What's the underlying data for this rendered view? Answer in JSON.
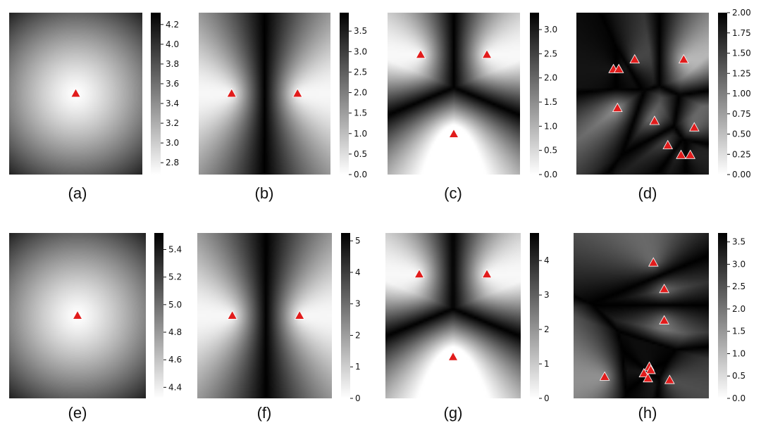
{
  "figure": {
    "panel_labels": [
      "(a)",
      "(b)",
      "(c)",
      "(d)",
      "(e)",
      "(f)",
      "(g)",
      "(h)"
    ]
  },
  "chart_data": [
    {
      "type": "heatmap",
      "label": "(a)",
      "field": "radial",
      "gamma": 1.3,
      "x_range": [
        0,
        1
      ],
      "y_range": [
        0,
        1
      ],
      "sources": [
        [
          0.5,
          0.5
        ]
      ],
      "colorbar": {
        "range": [
          2.68,
          4.32
        ],
        "ticks": [
          2.8,
          3.0,
          3.2,
          3.4,
          3.6,
          3.8,
          4.0,
          4.2
        ],
        "tick_labels": [
          "2.8",
          "3.0",
          "3.2",
          "3.4",
          "3.6",
          "3.8",
          "4.0",
          "4.2"
        ]
      }
    },
    {
      "type": "heatmap",
      "label": "(b)",
      "field": "gap",
      "gamma": 1.0,
      "x_range": [
        0,
        1
      ],
      "y_range": [
        0,
        1
      ],
      "sources": [
        [
          0.25,
          0.5
        ],
        [
          0.75,
          0.5
        ]
      ],
      "colorbar": {
        "range": [
          0,
          3.95
        ],
        "ticks": [
          0,
          0.5,
          1,
          1.5,
          2,
          2.5,
          3,
          3.5
        ],
        "tick_labels": [
          "0.0",
          "0.5",
          "1.0",
          "1.5",
          "2.0",
          "2.5",
          "3.0",
          "3.5"
        ]
      }
    },
    {
      "type": "heatmap",
      "label": "(c)",
      "field": "gap",
      "gamma": 1.0,
      "x_range": [
        0,
        1
      ],
      "y_range": [
        0,
        1
      ],
      "sources": [
        [
          0.25,
          0.26
        ],
        [
          0.75,
          0.26
        ],
        [
          0.5,
          0.75
        ]
      ],
      "colorbar": {
        "range": [
          0,
          3.35
        ],
        "ticks": [
          0,
          0.5,
          1,
          1.5,
          2,
          2.5,
          3
        ],
        "tick_labels": [
          "0.0",
          "0.5",
          "1.0",
          "1.5",
          "2.0",
          "2.5",
          "3.0"
        ]
      }
    },
    {
      "type": "heatmap",
      "label": "(d)",
      "field": "gap",
      "gamma": 1.0,
      "x_range": [
        0,
        1
      ],
      "y_range": [
        0,
        1
      ],
      "sources": [
        [
          0.28,
          0.35
        ],
        [
          0.32,
          0.35
        ],
        [
          0.44,
          0.29
        ],
        [
          0.81,
          0.29
        ],
        [
          0.31,
          0.59
        ],
        [
          0.59,
          0.67
        ],
        [
          0.89,
          0.71
        ],
        [
          0.69,
          0.82
        ],
        [
          0.79,
          0.88
        ],
        [
          0.86,
          0.88
        ]
      ],
      "colorbar": {
        "range": [
          0,
          2.0
        ],
        "ticks": [
          0,
          0.25,
          0.5,
          0.75,
          1.0,
          1.25,
          1.5,
          1.75,
          2.0
        ],
        "tick_labels": [
          "0.00",
          "0.25",
          "0.50",
          "0.75",
          "1.00",
          "1.25",
          "1.50",
          "1.75",
          "2.00"
        ]
      }
    },
    {
      "type": "heatmap",
      "label": "(e)",
      "field": "radial",
      "gamma": 1.3,
      "x_range": [
        0,
        1
      ],
      "y_range": [
        0,
        1
      ],
      "sources": [
        [
          0.5,
          0.5
        ]
      ],
      "colorbar": {
        "range": [
          4.32,
          5.52
        ],
        "ticks": [
          4.4,
          4.6,
          4.8,
          5.0,
          5.2,
          5.4
        ],
        "tick_labels": [
          "4.4",
          "4.6",
          "4.8",
          "5.0",
          "5.2",
          "5.4"
        ]
      }
    },
    {
      "type": "heatmap",
      "label": "(f)",
      "field": "gap",
      "gamma": 1.0,
      "x_range": [
        0,
        1
      ],
      "y_range": [
        0,
        1
      ],
      "sources": [
        [
          0.26,
          0.5
        ],
        [
          0.76,
          0.5
        ]
      ],
      "colorbar": {
        "range": [
          0,
          5.25
        ],
        "ticks": [
          0,
          1,
          2,
          3,
          4,
          5
        ],
        "tick_labels": [
          "0",
          "1",
          "2",
          "3",
          "4",
          "5"
        ]
      }
    },
    {
      "type": "heatmap",
      "label": "(g)",
      "field": "gap",
      "gamma": 1.0,
      "x_range": [
        0,
        1
      ],
      "y_range": [
        0,
        1
      ],
      "sources": [
        [
          0.25,
          0.25
        ],
        [
          0.75,
          0.25
        ],
        [
          0.5,
          0.75
        ]
      ],
      "colorbar": {
        "range": [
          0,
          4.8
        ],
        "ticks": [
          0,
          1,
          2,
          3,
          4
        ],
        "tick_labels": [
          "0",
          "1",
          "2",
          "3",
          "4"
        ]
      }
    },
    {
      "type": "heatmap",
      "label": "(h)",
      "field": "gap",
      "gamma": 1.0,
      "x_range": [
        0,
        1
      ],
      "y_range": [
        0,
        1
      ],
      "sources": [
        [
          0.59,
          0.18
        ],
        [
          0.67,
          0.34
        ],
        [
          0.67,
          0.53
        ],
        [
          0.56,
          0.81
        ],
        [
          0.57,
          0.83
        ],
        [
          0.52,
          0.85
        ],
        [
          0.55,
          0.88
        ],
        [
          0.71,
          0.89
        ],
        [
          0.23,
          0.87
        ]
      ],
      "colorbar": {
        "range": [
          0,
          3.7
        ],
        "ticks": [
          0,
          0.5,
          1,
          1.5,
          2,
          2.5,
          3,
          3.5
        ],
        "tick_labels": [
          "0.0",
          "0.5",
          "1.0",
          "1.5",
          "2.0",
          "2.5",
          "3.0",
          "3.5"
        ]
      }
    }
  ]
}
